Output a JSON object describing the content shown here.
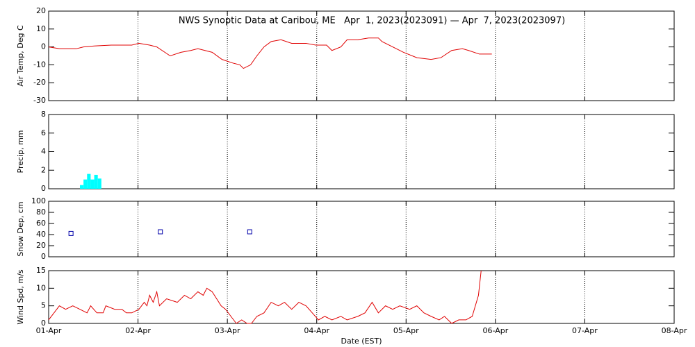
{
  "chart_data": [
    {
      "type": "line",
      "title": "NWS Synoptic Data at Caribou, ME   Apr  1, 2023(2023091) — Apr  7, 2023(2023097)",
      "ylabel": "Air Temp, Deg C",
      "color": "#e00000",
      "x": [
        0,
        0.12,
        0.31,
        0.39,
        0.51,
        0.7,
        0.93,
        1.01,
        1.13,
        1.21,
        1.36,
        1.48,
        1.59,
        1.67,
        1.83,
        1.94,
        2.06,
        2.14,
        2.18,
        2.26,
        2.33,
        2.41,
        2.49,
        2.6,
        2.72,
        2.88,
        2.99,
        3.11,
        3.17,
        3.27,
        3.34,
        3.46,
        3.58,
        3.69,
        3.73,
        3.85,
        3.97,
        4.12,
        4.28,
        4.39,
        4.51,
        4.63,
        4.7,
        4.82,
        4.96
      ],
      "values": [
        0,
        -1,
        -1,
        0,
        0.5,
        1,
        1,
        2,
        1,
        0,
        -5,
        -3,
        -2,
        -1,
        -3,
        -7,
        -9,
        -10,
        -12,
        -10,
        -5,
        0,
        3,
        4,
        2,
        2,
        1,
        1,
        -2,
        0,
        4,
        4,
        5,
        5,
        3,
        0,
        -3,
        -6,
        -7,
        -6,
        -2,
        -1,
        -2,
        -4,
        -4
      ],
      "xlim": [
        0,
        7
      ],
      "xticks": [
        0,
        1,
        2,
        3,
        4,
        5,
        6,
        7
      ],
      "ylim": [
        -30,
        20
      ],
      "yticks": [
        -30,
        -20,
        -10,
        0,
        10,
        20
      ],
      "grid": true
    },
    {
      "type": "bar",
      "ylabel": "Precip, mm",
      "color": "#00ffff",
      "x": [
        0.37,
        0.41,
        0.45,
        0.49,
        0.53,
        0.57
      ],
      "values": [
        0.4,
        1,
        1.6,
        1,
        1.5,
        1.1
      ],
      "xlim": [
        0,
        7
      ],
      "xticks": [
        0,
        1,
        2,
        3,
        4,
        5,
        6,
        7
      ],
      "ylim": [
        0,
        8
      ],
      "yticks": [
        0,
        2,
        4,
        6,
        8
      ],
      "grid": true
    },
    {
      "type": "scatter",
      "ylabel": "Snow Dep, cm",
      "color": "#0000aa",
      "x": [
        0.25,
        1.25,
        2.25
      ],
      "values": [
        42,
        45,
        45
      ],
      "xlim": [
        0,
        7
      ],
      "xticks": [
        0,
        1,
        2,
        3,
        4,
        5,
        6,
        7
      ],
      "ylim": [
        0,
        100
      ],
      "yticks": [
        0,
        20,
        40,
        60,
        80,
        100
      ],
      "grid": true
    },
    {
      "type": "line",
      "ylabel": "Wind Spd, m/s",
      "xlabel": "Date (EST)",
      "color": "#e00000",
      "x": [
        0,
        0.06,
        0.12,
        0.19,
        0.27,
        0.35,
        0.43,
        0.47,
        0.54,
        0.61,
        0.64,
        0.74,
        0.82,
        0.87,
        0.93,
        1.01,
        1.07,
        1.1,
        1.13,
        1.17,
        1.21,
        1.24,
        1.32,
        1.44,
        1.52,
        1.59,
        1.67,
        1.73,
        1.77,
        1.83,
        1.88,
        1.93,
        1.98,
        2.04,
        2.1,
        2.16,
        2.22,
        2.27,
        2.33,
        2.41,
        2.49,
        2.57,
        2.64,
        2.72,
        2.8,
        2.88,
        2.95,
        3.02,
        3.09,
        3.17,
        3.27,
        3.34,
        3.46,
        3.54,
        3.62,
        3.69,
        3.77,
        3.85,
        3.93,
        4.04,
        4.12,
        4.2,
        4.28,
        4.37,
        4.43,
        4.51,
        4.59,
        4.67,
        4.74,
        4.81,
        4.84
      ],
      "values": [
        1,
        3,
        5,
        4,
        5,
        4,
        3,
        5,
        3,
        3,
        5,
        4,
        4,
        3,
        3,
        4,
        6,
        5,
        8,
        6,
        9,
        5,
        7,
        6,
        8,
        7,
        9,
        8,
        10,
        9,
        7,
        5,
        4,
        2,
        0,
        1,
        0,
        0,
        2,
        3,
        6,
        5,
        6,
        4,
        6,
        5,
        3,
        1,
        2,
        1,
        2,
        1,
        2,
        3,
        6,
        3,
        5,
        4,
        5,
        4,
        5,
        3,
        2,
        1,
        2,
        0,
        1,
        1,
        2,
        8,
        15
      ],
      "xlim": [
        0,
        7
      ],
      "xticks": [
        {
          "value": 0,
          "label": "01-Apr"
        },
        {
          "value": 1,
          "label": "02-Apr"
        },
        {
          "value": 2,
          "label": "03-Apr"
        },
        {
          "value": 3,
          "label": "04-Apr"
        },
        {
          "value": 4,
          "label": "05-Apr"
        },
        {
          "value": 5,
          "label": "06-Apr"
        },
        {
          "value": 6,
          "label": "07-Apr"
        },
        {
          "value": 7,
          "label": "08-Apr"
        }
      ],
      "ylim": [
        0,
        15
      ],
      "yticks": [
        0,
        5,
        10,
        15
      ],
      "grid": true
    }
  ]
}
